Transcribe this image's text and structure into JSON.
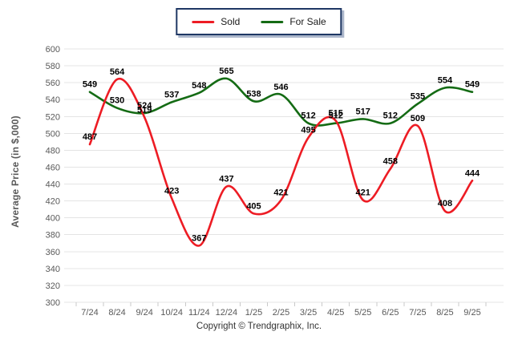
{
  "legend": {
    "items": [
      {
        "label": "Sold",
        "color": "#ed1c24"
      },
      {
        "label": "For Sale",
        "color": "#146b14"
      }
    ]
  },
  "y_axis": {
    "title": "Average Price (in $,000)",
    "min": 300,
    "max": 600,
    "step": 20
  },
  "footer": {
    "copyright": "Copyright © Trendgraphix, Inc."
  },
  "chart_data": {
    "type": "line",
    "title": "",
    "xlabel": "",
    "ylabel": "Average Price (in $,000)",
    "ylim": [
      300,
      600
    ],
    "ystep": 20,
    "grid": "horizontal",
    "legend_position": "top-center",
    "line_style": "smooth",
    "categories": [
      "7/24",
      "8/24",
      "9/24",
      "10/24",
      "11/24",
      "12/24",
      "1/25",
      "2/25",
      "3/25",
      "4/25",
      "5/25",
      "6/25",
      "7/25",
      "8/25",
      "9/25"
    ],
    "series": [
      {
        "name": "Sold",
        "color": "#ed1c24",
        "values": [
          487,
          564,
          519,
          423,
          367,
          437,
          405,
          421,
          495,
          515,
          421,
          458,
          509,
          408,
          444
        ]
      },
      {
        "name": "For Sale",
        "color": "#146b14",
        "values": [
          549,
          530,
          524,
          537,
          548,
          565,
          538,
          546,
          512,
          512,
          517,
          512,
          535,
          554,
          549
        ]
      }
    ]
  }
}
